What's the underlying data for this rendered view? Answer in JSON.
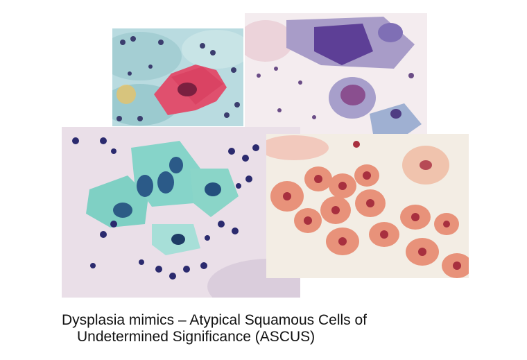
{
  "caption": {
    "line1": "Dysplasia mimics – Atypical Squamous Cells of",
    "line2": "Undetermined Significance (ASCUS)"
  },
  "colors": {
    "background": "#ffffff",
    "pink_cytoplasm": "#e0506e",
    "cyan_cytoplasm": "#7fd0c4",
    "nucleus_dark": "#2b2a6e",
    "orange_cells": "#e8927a"
  }
}
